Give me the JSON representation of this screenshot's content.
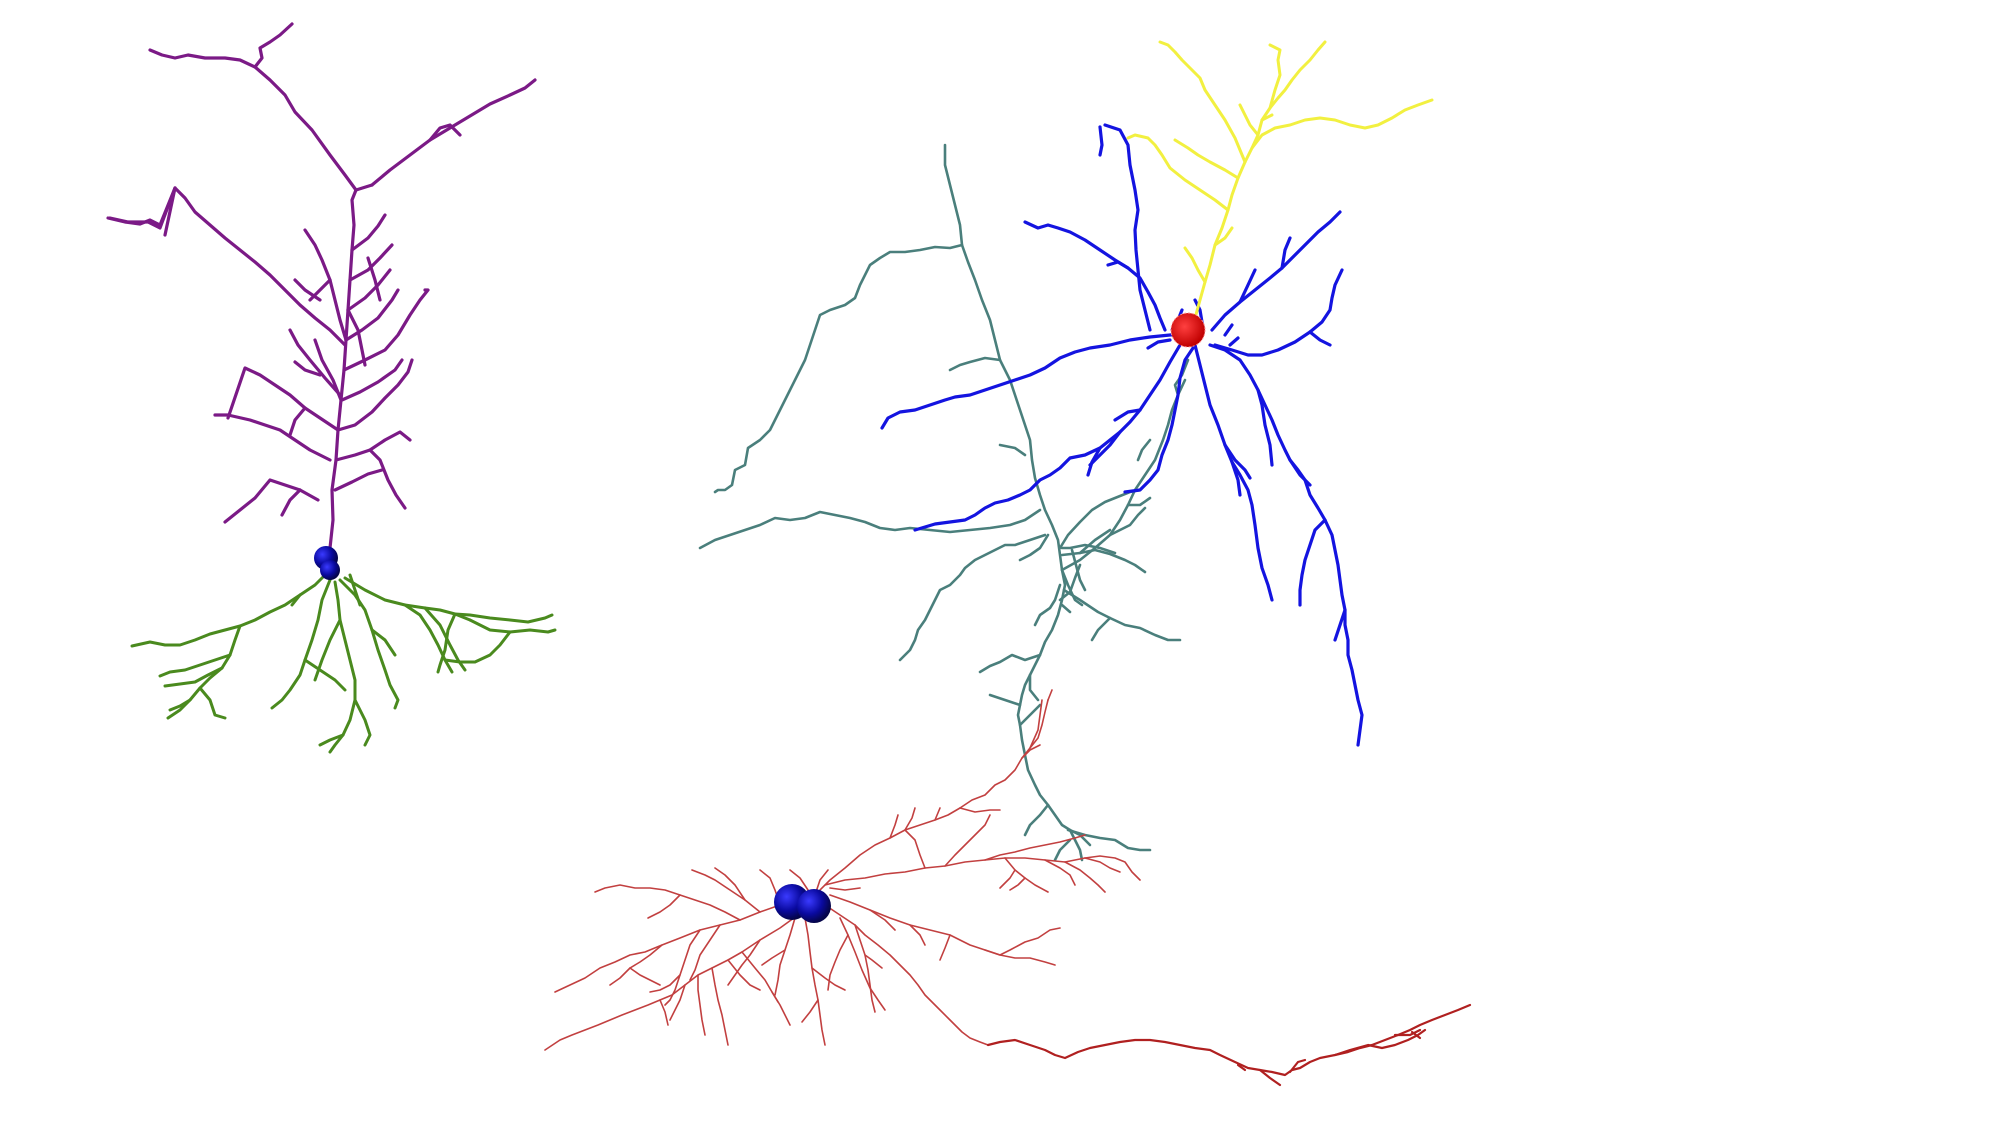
{
  "scene": {
    "background": "#ffffff",
    "neurons": [
      {
        "id": "pyramidal-neuron",
        "apical_color": "#7b1a86",
        "basal_color": "#4a8a1e",
        "soma_color": "#1010b0"
      },
      {
        "id": "stellate-neuron",
        "axon_color": "#4a7f7c",
        "dendrite_color": "#1414e0",
        "apical_color": "#f2f040",
        "soma_color": "#e01010"
      },
      {
        "id": "basket-neuron",
        "dendrite_color": "#c24040",
        "axon_color": "#b02020",
        "soma_color": "#0a0a9a"
      }
    ]
  }
}
